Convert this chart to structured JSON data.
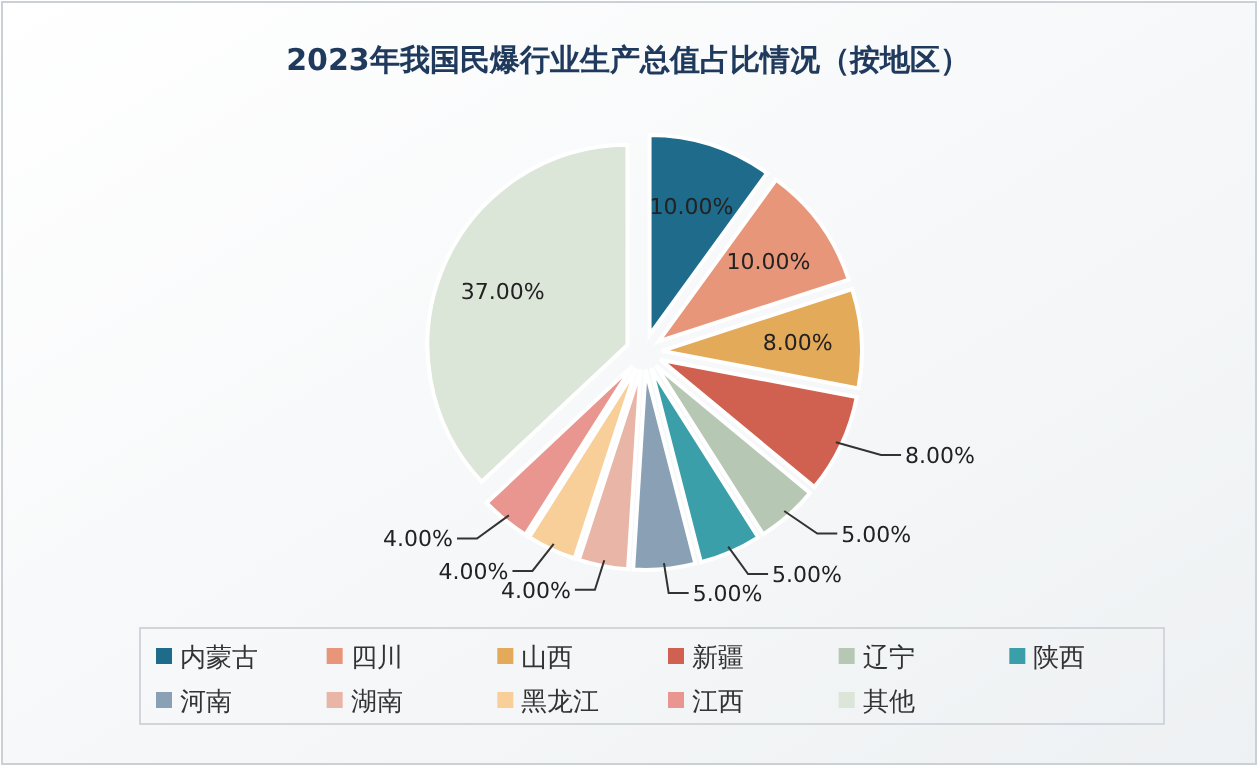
{
  "chart_data": {
    "type": "pie",
    "title": "2023年我国民爆行业生产总值占比情况（按地区）",
    "categories": [
      "内蒙古",
      "四川",
      "山西",
      "新疆",
      "辽宁",
      "陕西",
      "河南",
      "湖南",
      "黑龙江",
      "江西",
      "其他"
    ],
    "values": [
      10,
      10,
      8,
      8,
      5,
      5,
      5,
      4,
      4,
      4,
      37
    ],
    "colors": [
      "#1f6b8c",
      "#e8967a",
      "#e3aa5a",
      "#d0604f",
      "#b6c8b4",
      "#3a9fa8",
      "#8aa0b4",
      "#e8b5a6",
      "#f8cf98",
      "#e8968f",
      "#dbe5d8"
    ],
    "value_labels": [
      "10.00%",
      "10.00%",
      "8.00%",
      "8.00%",
      "5.00%",
      "5.00%",
      "5.00%",
      "4.00%",
      "4.00%",
      "4.00%",
      "37.00%"
    ],
    "legend": "bottom"
  }
}
